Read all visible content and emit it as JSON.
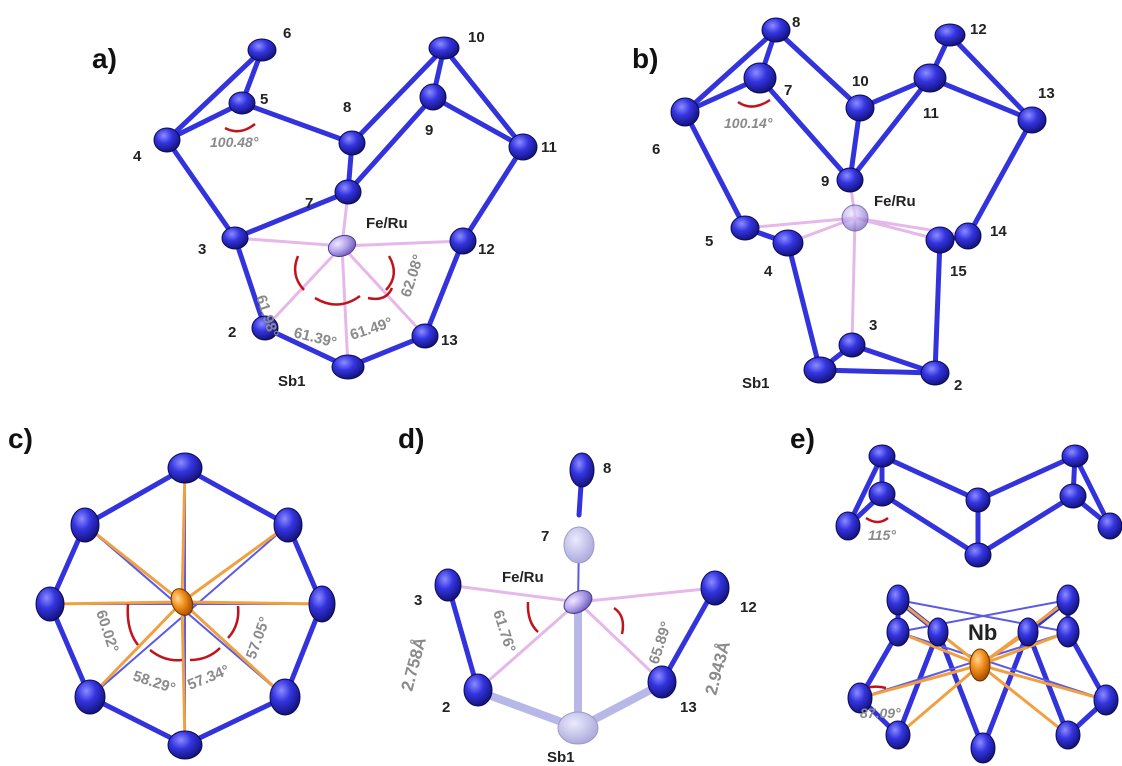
{
  "panels": {
    "a": {
      "label": "a)",
      "atoms": [
        "6",
        "5",
        "4",
        "8",
        "10",
        "9",
        "11",
        "7",
        "3",
        "12",
        "2",
        "13",
        "Sb1"
      ],
      "metal": "Fe/Ru",
      "angles": [
        "100.48°",
        "61.98°",
        "61.39°",
        "61.49°",
        "62.08°"
      ]
    },
    "b": {
      "label": "b)",
      "atoms": [
        "8",
        "7",
        "12",
        "10",
        "11",
        "13",
        "6",
        "9",
        "5",
        "4",
        "14",
        "15",
        "3",
        "Sb1",
        "2"
      ],
      "metal": "Fe/Ru",
      "angles": [
        "100.14°"
      ]
    },
    "c": {
      "label": "c)",
      "angles": [
        "60.02°",
        "58.29°",
        "57.34°",
        "57.05°"
      ]
    },
    "d": {
      "label": "d)",
      "atoms": [
        "8",
        "7",
        "3",
        "12",
        "2",
        "13",
        "Sb1"
      ],
      "metal": "Fe/Ru",
      "angles": [
        "61.76°",
        "65.89°"
      ],
      "distances": [
        "2.758Å",
        "2.943Å"
      ]
    },
    "e": {
      "label": "e)",
      "metal": "Nb",
      "angles": [
        "115°",
        "87.09°"
      ]
    }
  },
  "colors": {
    "atom": "#3030d8",
    "bond": "#3333dd",
    "metal_feru": "#b9a6ee",
    "metal_nb": "#f08a18",
    "angle_arc": "#c0141c",
    "annotation": "#8a8a8a"
  }
}
